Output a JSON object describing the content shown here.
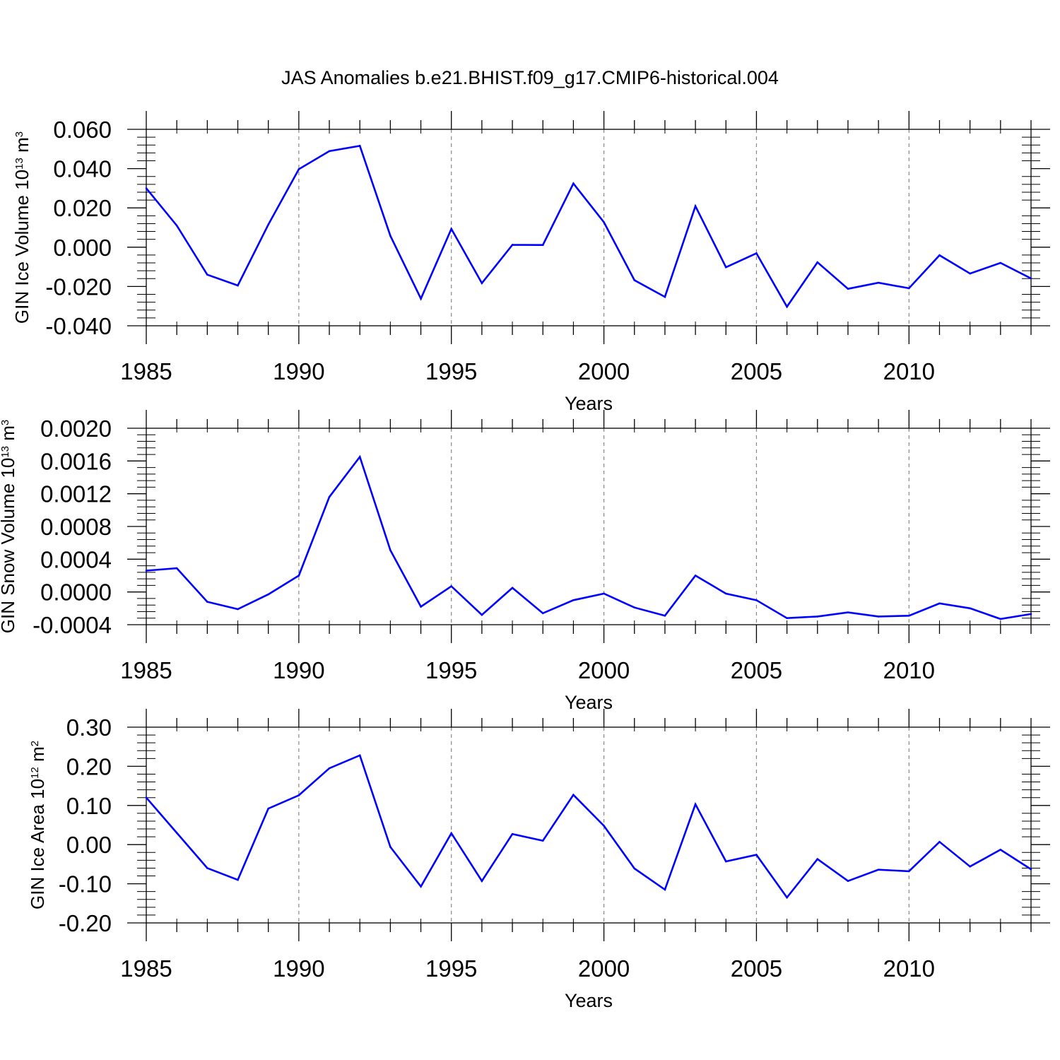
{
  "figure": {
    "title": "JAS Anomalies b.e21.BHIST.f09_g17.CMIP6-historical.004"
  },
  "colors": {
    "line": "#0000ff",
    "axis": "#000000",
    "grid": "#888888"
  },
  "chart_data": [
    {
      "type": "line",
      "ylabel": {
        "text": "GIN Ice Volume 10",
        "sup": "13",
        "unit": " m",
        "unit_sup": "3"
      },
      "xlabel": "Years",
      "xlim": [
        1985,
        2014
      ],
      "ylim": [
        -0.04,
        0.06
      ],
      "yticks": [
        -0.04,
        -0.02,
        0.0,
        0.02,
        0.04,
        0.06
      ],
      "ytick_labels": [
        "-0.040",
        "-0.020",
        "0.000",
        "0.020",
        "0.040",
        "0.060"
      ],
      "xticks": [
        1985,
        1990,
        1995,
        2000,
        2005,
        2010
      ],
      "xtick_labels": [
        "1985",
        "1990",
        "1995",
        "2000",
        "2005",
        "2010"
      ],
      "grid_x": [
        1990,
        1995,
        2000,
        2005,
        2010
      ],
      "series": [
        {
          "name": "GIN Ice Volume anomaly",
          "x": [
            1985,
            1986,
            1987,
            1988,
            1989,
            1990,
            1991,
            1992,
            1993,
            1994,
            1995,
            1996,
            1997,
            1998,
            1999,
            2000,
            2001,
            2002,
            2003,
            2004,
            2005,
            2006,
            2007,
            2008,
            2009,
            2010,
            2011,
            2012,
            2013,
            2014
          ],
          "values": [
            0.03,
            0.011,
            -0.014,
            -0.0195,
            0.0115,
            0.0397,
            0.0489,
            0.0516,
            0.0058,
            -0.0262,
            0.0093,
            -0.0183,
            0.0012,
            0.0011,
            0.0324,
            0.0127,
            -0.0168,
            -0.0253,
            0.0209,
            -0.0102,
            -0.0031,
            -0.0303,
            -0.0077,
            -0.0212,
            -0.0181,
            -0.0209,
            -0.0041,
            -0.0134,
            -0.008,
            -0.0159
          ]
        }
      ]
    },
    {
      "type": "line",
      "ylabel": {
        "text": "GIN Snow Volume 10",
        "sup": "13",
        "unit": " m",
        "unit_sup": "3"
      },
      "xlabel": "Years",
      "xlim": [
        1985,
        2014
      ],
      "ylim": [
        -0.0004,
        0.002
      ],
      "yticks": [
        -0.0004,
        0.0,
        0.0004,
        0.0008,
        0.0012,
        0.0016,
        0.002
      ],
      "ytick_labels": [
        "-0.0004",
        "0.0000",
        "0.0004",
        "0.0008",
        "0.0012",
        "0.0016",
        "0.0020"
      ],
      "xticks": [
        1985,
        1990,
        1995,
        2000,
        2005,
        2010
      ],
      "xtick_labels": [
        "1985",
        "1990",
        "1995",
        "2000",
        "2005",
        "2010"
      ],
      "grid_x": [
        1990,
        1995,
        2000,
        2005,
        2010
      ],
      "series": [
        {
          "name": "GIN Snow Volume anomaly",
          "x": [
            1985,
            1986,
            1987,
            1988,
            1989,
            1990,
            1991,
            1992,
            1993,
            1994,
            1995,
            1996,
            1997,
            1998,
            1999,
            2000,
            2001,
            2002,
            2003,
            2004,
            2005,
            2006,
            2007,
            2008,
            2009,
            2010,
            2011,
            2012,
            2013,
            2014
          ],
          "values": [
            0.00026,
            0.00029,
            -0.00012,
            -0.00021,
            -3e-05,
            0.0002,
            0.00116,
            0.00165,
            0.00051,
            -0.00018,
            7e-05,
            -0.00028,
            5e-05,
            -0.00026,
            -0.0001,
            -2e-05,
            -0.00019,
            -0.00029,
            0.0002,
            -2e-05,
            -0.0001,
            -0.00032,
            -0.0003,
            -0.00025,
            -0.0003,
            -0.00029,
            -0.00014,
            -0.0002,
            -0.00033,
            -0.00027
          ]
        }
      ]
    },
    {
      "type": "line",
      "ylabel": {
        "text": "GIN Ice Area 10",
        "sup": "12",
        "unit": " m",
        "unit_sup": "2"
      },
      "xlabel": "Years",
      "xlim": [
        1985,
        2014
      ],
      "ylim": [
        -0.2,
        0.3
      ],
      "yticks": [
        -0.2,
        -0.1,
        0.0,
        0.1,
        0.2,
        0.3
      ],
      "ytick_labels": [
        "-0.20",
        "-0.10",
        "0.00",
        "0.10",
        "0.20",
        "0.30"
      ],
      "xticks": [
        1985,
        1990,
        1995,
        2000,
        2005,
        2010
      ],
      "xtick_labels": [
        "1985",
        "1990",
        "1995",
        "2000",
        "2005",
        "2010"
      ],
      "grid_x": [
        1990,
        1995,
        2000,
        2005,
        2010
      ],
      "series": [
        {
          "name": "GIN Ice Area anomaly",
          "x": [
            1985,
            1986,
            1987,
            1988,
            1989,
            1990,
            1991,
            1992,
            1993,
            1994,
            1995,
            1996,
            1997,
            1998,
            1999,
            2000,
            2001,
            2002,
            2003,
            2004,
            2005,
            2006,
            2007,
            2008,
            2009,
            2010,
            2011,
            2012,
            2013,
            2014
          ],
          "values": [
            0.12,
            0.03,
            -0.06,
            -0.09,
            0.092,
            0.126,
            0.195,
            0.228,
            -0.006,
            -0.107,
            0.029,
            -0.093,
            0.027,
            0.01,
            0.127,
            0.048,
            -0.061,
            -0.115,
            0.103,
            -0.043,
            -0.026,
            -0.135,
            -0.037,
            -0.093,
            -0.064,
            -0.068,
            0.007,
            -0.056,
            -0.013,
            -0.063
          ]
        }
      ]
    }
  ]
}
